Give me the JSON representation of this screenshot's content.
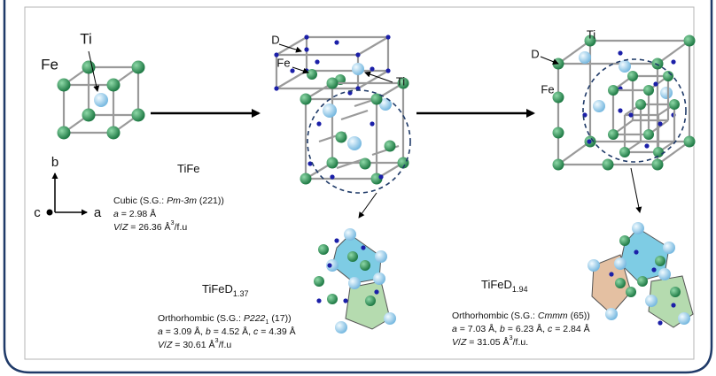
{
  "axes": {
    "b": "b",
    "c": "c",
    "a": "a"
  },
  "panels": [
    {
      "atom_labels": [
        "Ti",
        "Fe"
      ],
      "formula": [
        {
          "text": "TiFe"
        }
      ],
      "lines": [
        [
          {
            "text": "Cubic (S.G.: "
          },
          {
            "text": "Pm-3m",
            "style": "italic"
          },
          {
            "text": " (221))"
          }
        ],
        [
          {
            "text": "a",
            "style": "italic"
          },
          {
            "text": " = 2.98 Å"
          }
        ],
        [
          {
            "text": "V",
            "style": "italic"
          },
          {
            "text": "/"
          },
          {
            "text": "Z",
            "style": "italic"
          },
          {
            "text": " = 26.36 Å"
          },
          {
            "text": "3",
            "style": "sup"
          },
          {
            "text": "/f.u"
          }
        ]
      ]
    },
    {
      "atom_labels": [
        "D",
        "Fe",
        "Ti"
      ],
      "formula": [
        {
          "text": "TiFeD"
        },
        {
          "text": "1.37",
          "style": "sub"
        }
      ],
      "lines": [
        [
          {
            "text": "Orthorhombic (S.G.: "
          },
          {
            "text": "P222",
            "style": "italic"
          },
          {
            "text": "1",
            "style": "sub"
          },
          {
            "text": " (17))"
          }
        ],
        [
          {
            "text": "a",
            "style": "italic"
          },
          {
            "text": " = 3.09 Å, "
          },
          {
            "text": "b",
            "style": "italic"
          },
          {
            "text": " = 4.52 Å, "
          },
          {
            "text": "c",
            "style": "italic"
          },
          {
            "text": " = 4.39 Å"
          }
        ],
        [
          {
            "text": "V",
            "style": "italic"
          },
          {
            "text": "/"
          },
          {
            "text": "Z",
            "style": "italic"
          },
          {
            "text": " = 30.61 Å"
          },
          {
            "text": "3",
            "style": "sup"
          },
          {
            "text": "/f.u"
          }
        ]
      ]
    },
    {
      "atom_labels": [
        "D",
        "Ti",
        "Fe"
      ],
      "formula": [
        {
          "text": "TiFeD"
        },
        {
          "text": "1.94",
          "style": "sub"
        }
      ],
      "lines": [
        [
          {
            "text": "Orthorhombic (S.G.: "
          },
          {
            "text": "Cmmm",
            "style": "italic"
          },
          {
            "text": " (65))"
          }
        ],
        [
          {
            "text": "a",
            "style": "italic"
          },
          {
            "text": " = 7.03 Å, "
          },
          {
            "text": "b",
            "style": "italic"
          },
          {
            "text": " = 6.23 Å, "
          },
          {
            "text": "c",
            "style": "italic"
          },
          {
            "text": " = 2.84 Å"
          }
        ],
        [
          {
            "text": "V",
            "style": "italic"
          },
          {
            "text": "/"
          },
          {
            "text": "Z",
            "style": "italic"
          },
          {
            "text": " = 31.05 Å"
          },
          {
            "text": "3",
            "style": "sup"
          },
          {
            "text": "/f.u."
          }
        ]
      ]
    }
  ]
}
